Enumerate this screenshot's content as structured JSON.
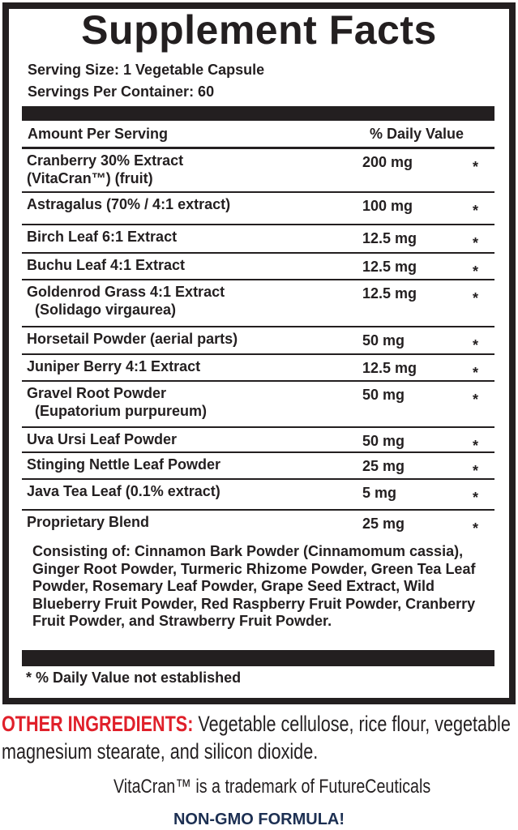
{
  "title": "Supplement Facts",
  "serving_size": "Serving Size: 1 Vegetable Capsule",
  "servings_per_container": "Servings Per Container: 60",
  "header": {
    "amount": "Amount Per Serving",
    "daily_value": "% Daily Value"
  },
  "ingredients": [
    {
      "name": "Cranberry 30% Extract\n(VitaCran™) (fruit)",
      "amount": "200 mg",
      "dv": "*"
    },
    {
      "name": "Astragalus (70% / 4:1 extract)",
      "amount": "100 mg",
      "dv": "*"
    },
    {
      "name": "Birch Leaf 6:1 Extract",
      "amount": "12.5 mg",
      "dv": "*"
    },
    {
      "name": "Buchu Leaf 4:1 Extract",
      "amount": "12.5 mg",
      "dv": "*"
    },
    {
      "name": "Goldenrod Grass 4:1 Extract\n  (Solidago virgaurea)",
      "amount": "12.5 mg",
      "dv": "*"
    },
    {
      "name": "Horsetail Powder (aerial parts)",
      "amount": "50 mg",
      "dv": "*"
    },
    {
      "name": "Juniper Berry 4:1 Extract",
      "amount": "12.5 mg",
      "dv": "*"
    },
    {
      "name": "Gravel Root Powder\n  (Eupatorium purpureum)",
      "amount": "50 mg",
      "dv": "*"
    },
    {
      "name": "Uva Ursi Leaf Powder",
      "amount": "50 mg",
      "dv": "*"
    },
    {
      "name": "Stinging Nettle Leaf Powder",
      "amount": "25 mg",
      "dv": "*"
    },
    {
      "name": "Java Tea Leaf (0.1% extract)",
      "amount": "5 mg",
      "dv": "*"
    },
    {
      "name": "Proprietary Blend",
      "amount": "25 mg",
      "dv": "*"
    }
  ],
  "blend_consisting": "Consisting of: Cinnamon Bark Powder (Cinnamomum cassia), Ginger Root Powder, Turmeric Rhizome Powder, Green Tea Leaf Powder, Rosemary Leaf Powder, Grape Seed Extract, Wild Blueberry Fruit Powder, Red Raspberry Fruit Powder, Cranberry Fruit Powder, and Strawberry Fruit Powder.",
  "footnote": "* % Daily Value not established",
  "other_ingredients": {
    "label": "OTHER INGREDIENTS:",
    "text": " Vegetable cellulose, rice flour, vegetable magnesium stearate, and silicon dioxide."
  },
  "trademark": "VitaCran™ is a trademark of FutureCeuticals",
  "non_gmo": "NON-GMO FORMULA!",
  "colors": {
    "text": "#231f20",
    "other_label": "#e0202a",
    "non_gmo": "#1c2f52"
  }
}
